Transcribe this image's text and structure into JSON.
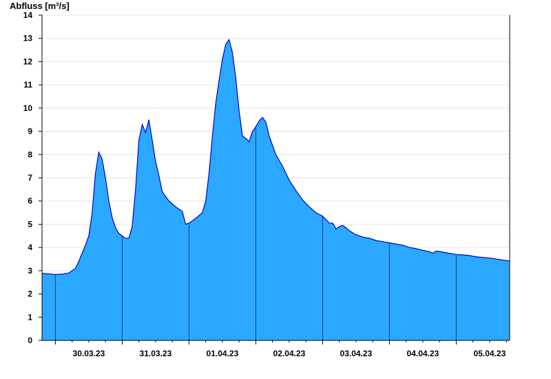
{
  "chart_data": {
    "type": "area",
    "ylabel": "Abfluss [m³/s]",
    "ylim": [
      0,
      14
    ],
    "yticks": [
      0,
      1,
      2,
      3,
      4,
      5,
      6,
      7,
      8,
      9,
      10,
      11,
      12,
      13,
      14
    ],
    "x_unit": "days since 29.03.23 00:00",
    "xlim": [
      0.8,
      7.8
    ],
    "day_boundaries": [
      1,
      2,
      3,
      4,
      5,
      6,
      7
    ],
    "day_labels": [
      {
        "x": 1.5,
        "label": "30.03.23"
      },
      {
        "x": 2.5,
        "label": "31.03.23"
      },
      {
        "x": 3.5,
        "label": "01.04.23"
      },
      {
        "x": 4.5,
        "label": "02.04.23"
      },
      {
        "x": 5.5,
        "label": "03.04.23"
      },
      {
        "x": 6.5,
        "label": "04.04.23"
      },
      {
        "x": 7.5,
        "label": "05.04.23"
      }
    ],
    "grid": "horizontal",
    "colors": {
      "fill": "#2ba8ff",
      "line": "#0000cc",
      "grid": "#e6e6e6",
      "divider": "#1a3a80",
      "axis": "#000000"
    },
    "series": [
      {
        "points": [
          [
            0.8,
            2.88
          ],
          [
            0.9,
            2.87
          ],
          [
            1.0,
            2.84
          ],
          [
            1.1,
            2.85
          ],
          [
            1.2,
            2.9
          ],
          [
            1.3,
            3.1
          ],
          [
            1.35,
            3.4
          ],
          [
            1.4,
            3.75
          ],
          [
            1.45,
            4.1
          ],
          [
            1.5,
            4.5
          ],
          [
            1.55,
            5.5
          ],
          [
            1.6,
            7.2
          ],
          [
            1.65,
            8.1
          ],
          [
            1.7,
            7.8
          ],
          [
            1.75,
            7.0
          ],
          [
            1.8,
            6.0
          ],
          [
            1.85,
            5.3
          ],
          [
            1.9,
            4.85
          ],
          [
            1.95,
            4.6
          ],
          [
            2.0,
            4.5
          ],
          [
            2.05,
            4.4
          ],
          [
            2.1,
            4.4
          ],
          [
            2.15,
            4.9
          ],
          [
            2.2,
            6.5
          ],
          [
            2.25,
            8.6
          ],
          [
            2.3,
            9.3
          ],
          [
            2.35,
            8.95
          ],
          [
            2.4,
            9.5
          ],
          [
            2.45,
            8.6
          ],
          [
            2.5,
            7.7
          ],
          [
            2.55,
            7.1
          ],
          [
            2.6,
            6.4
          ],
          [
            2.7,
            6.0
          ],
          [
            2.8,
            5.75
          ],
          [
            2.9,
            5.55
          ],
          [
            2.95,
            5.0
          ],
          [
            3.0,
            5.05
          ],
          [
            3.1,
            5.25
          ],
          [
            3.2,
            5.5
          ],
          [
            3.25,
            6.0
          ],
          [
            3.3,
            7.2
          ],
          [
            3.35,
            8.8
          ],
          [
            3.4,
            10.2
          ],
          [
            3.45,
            11.2
          ],
          [
            3.5,
            12.1
          ],
          [
            3.55,
            12.75
          ],
          [
            3.6,
            12.95
          ],
          [
            3.65,
            12.4
          ],
          [
            3.7,
            11.3
          ],
          [
            3.75,
            9.9
          ],
          [
            3.8,
            8.8
          ],
          [
            3.85,
            8.7
          ],
          [
            3.9,
            8.55
          ],
          [
            3.95,
            9.0
          ],
          [
            4.0,
            9.2
          ],
          [
            4.05,
            9.45
          ],
          [
            4.1,
            9.6
          ],
          [
            4.15,
            9.4
          ],
          [
            4.2,
            8.8
          ],
          [
            4.3,
            8.0
          ],
          [
            4.4,
            7.5
          ],
          [
            4.5,
            6.9
          ],
          [
            4.6,
            6.45
          ],
          [
            4.7,
            6.05
          ],
          [
            4.8,
            5.75
          ],
          [
            4.9,
            5.5
          ],
          [
            5.0,
            5.35
          ],
          [
            5.1,
            5.05
          ],
          [
            5.15,
            5.05
          ],
          [
            5.2,
            4.8
          ],
          [
            5.25,
            4.9
          ],
          [
            5.3,
            4.95
          ],
          [
            5.35,
            4.85
          ],
          [
            5.4,
            4.72
          ],
          [
            5.5,
            4.55
          ],
          [
            5.6,
            4.45
          ],
          [
            5.7,
            4.4
          ],
          [
            5.8,
            4.3
          ],
          [
            5.9,
            4.25
          ],
          [
            6.0,
            4.2
          ],
          [
            6.1,
            4.15
          ],
          [
            6.2,
            4.1
          ],
          [
            6.3,
            4.0
          ],
          [
            6.4,
            3.95
          ],
          [
            6.5,
            3.88
          ],
          [
            6.6,
            3.82
          ],
          [
            6.65,
            3.75
          ],
          [
            6.7,
            3.85
          ],
          [
            6.8,
            3.8
          ],
          [
            6.9,
            3.75
          ],
          [
            7.0,
            3.7
          ],
          [
            7.1,
            3.68
          ],
          [
            7.2,
            3.65
          ],
          [
            7.3,
            3.6
          ],
          [
            7.4,
            3.57
          ],
          [
            7.5,
            3.55
          ],
          [
            7.6,
            3.5
          ],
          [
            7.7,
            3.46
          ],
          [
            7.8,
            3.42
          ]
        ]
      }
    ]
  }
}
